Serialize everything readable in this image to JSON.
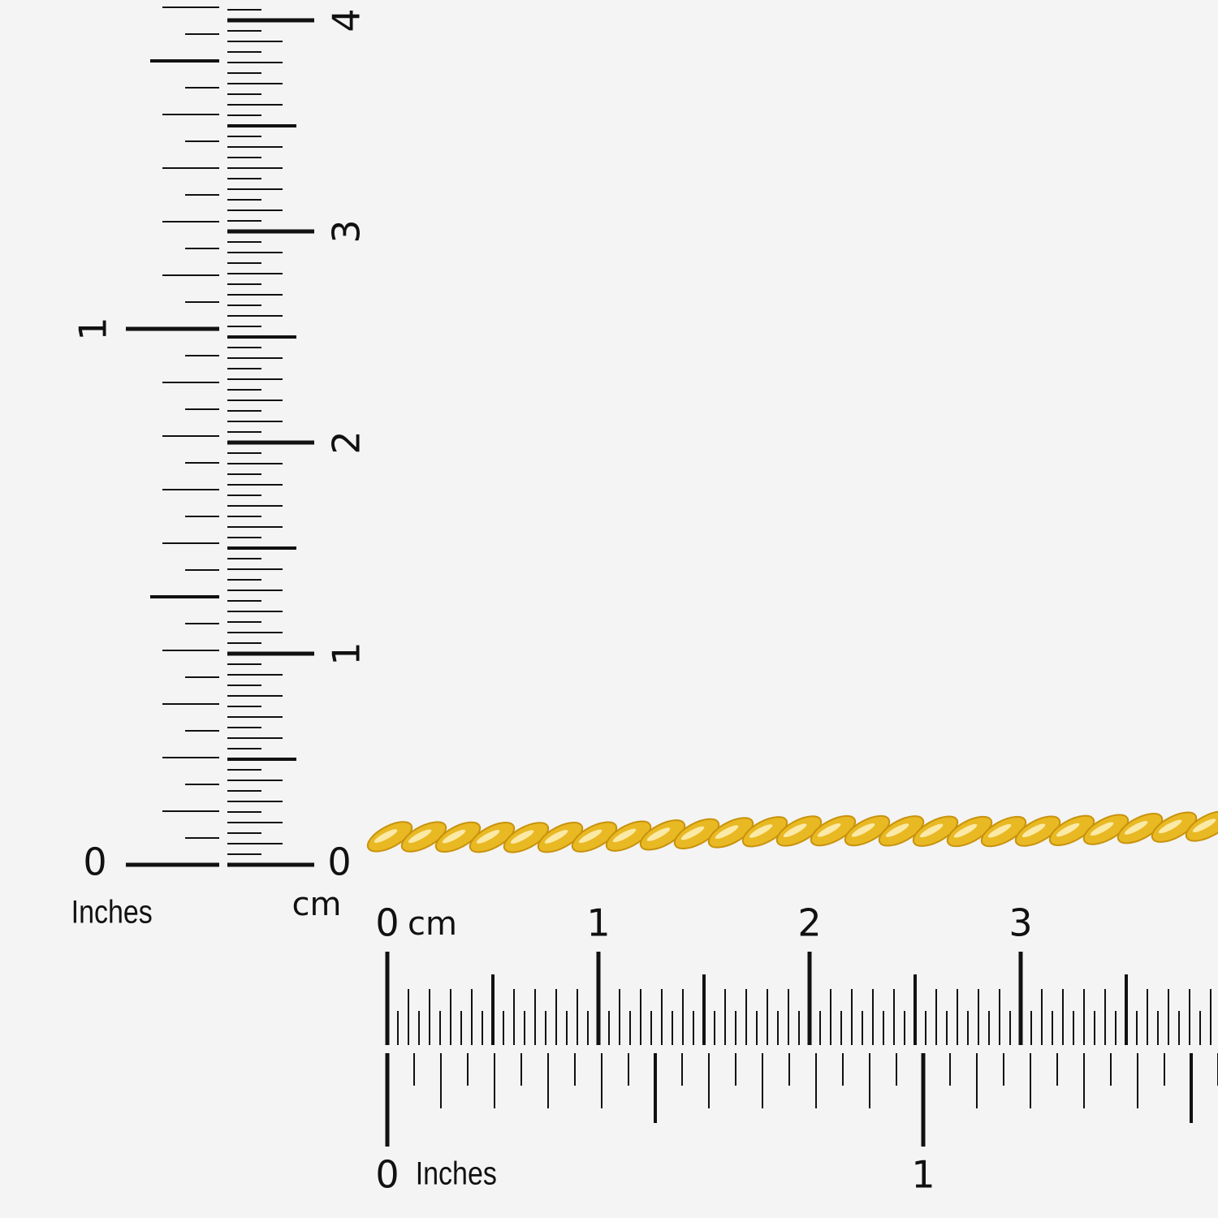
{
  "vertical_ruler": {
    "inch_labels": [
      "0",
      "1"
    ],
    "inch_unit": "Inches",
    "cm_labels": [
      "0",
      "1",
      "2",
      "3",
      "4"
    ],
    "cm_unit": "cm"
  },
  "horizontal_ruler": {
    "cm_labels": [
      "0",
      "1",
      "2",
      "3"
    ],
    "cm_unit": "cm",
    "inch_labels": [
      "0",
      "1"
    ],
    "inch_unit": "Inches"
  }
}
